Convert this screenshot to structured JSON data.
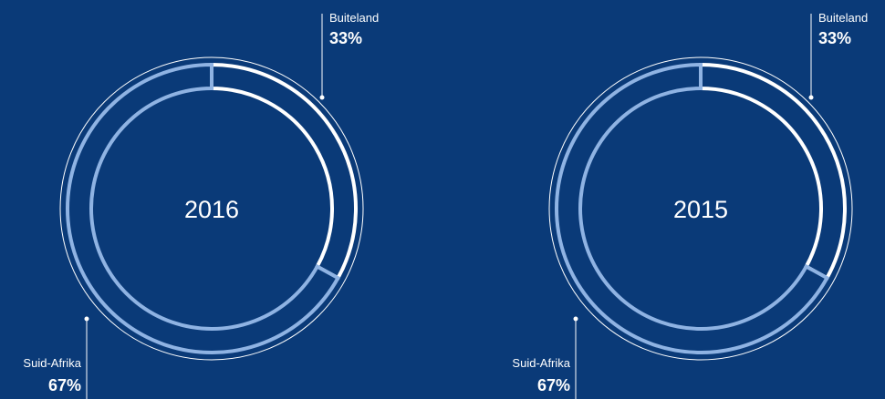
{
  "colors": {
    "background": "#0a3a78",
    "foreign_segment": "#ffffff",
    "domestic_segment": "#8fb3e3",
    "thin_outline": "#ffffff",
    "text": "#ffffff"
  },
  "chart_data": [
    {
      "type": "pie",
      "style": "donut",
      "center_label": "2016",
      "slices": [
        {
          "label": "Buiteland",
          "value": 33,
          "display": "33%"
        },
        {
          "label": "Suid-Afrika",
          "value": 67,
          "display": "67%"
        }
      ]
    },
    {
      "type": "pie",
      "style": "donut",
      "center_label": "2015",
      "slices": [
        {
          "label": "Buiteland",
          "value": 33,
          "display": "33%"
        },
        {
          "label": "Suid-Afrika",
          "value": 67,
          "display": "67%"
        }
      ]
    }
  ]
}
